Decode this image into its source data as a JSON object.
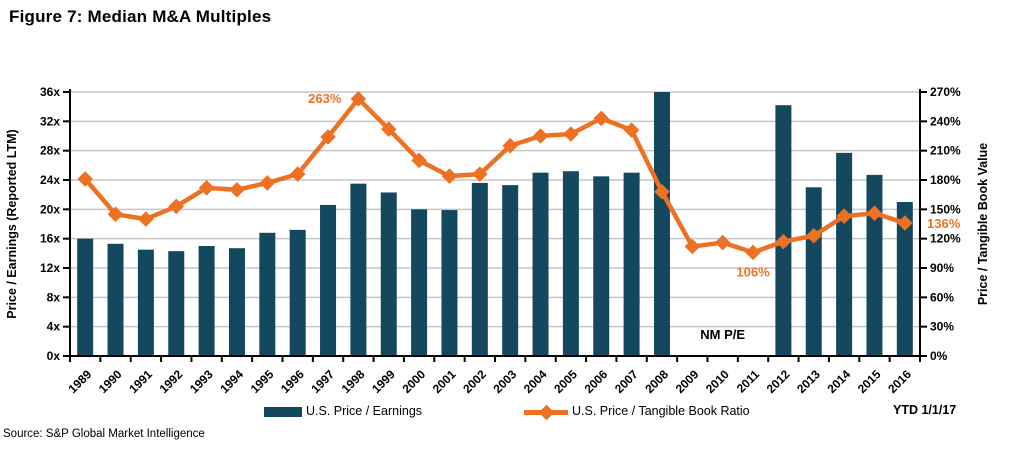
{
  "title": "Figure 7: Median M&A Multiples",
  "source": "Source: S&P Global Market Intelligence",
  "ytd_label": "YTD 1/1/17",
  "legend": {
    "bars": "U.S. Price / Earnings",
    "line": "U.S. Price / Tangible Book Ratio"
  },
  "colors": {
    "bar": "#14485F",
    "line": "#EE7023",
    "grid": "#C6C6C6",
    "axis": "#000000"
  },
  "chart_data": {
    "type": "bar",
    "subtype": "combo bar + line, dual axis",
    "grid": true,
    "legend_position": "bottom",
    "categories": [
      "1989",
      "1990",
      "1991",
      "1992",
      "1993",
      "1994",
      "1995",
      "1996",
      "1997",
      "1998",
      "1999",
      "2000",
      "2001",
      "2002",
      "2003",
      "2004",
      "2005",
      "2006",
      "2007",
      "2008",
      "2009",
      "2010",
      "2011",
      "2012",
      "2013",
      "2014",
      "2015",
      "2016"
    ],
    "series": [
      {
        "name": "U.S. Price / Earnings",
        "type": "bar",
        "axis": "left",
        "values": [
          16.0,
          15.3,
          14.5,
          14.3,
          15.0,
          14.7,
          16.8,
          17.2,
          20.6,
          23.5,
          22.3,
          20.0,
          19.9,
          23.6,
          23.3,
          25.0,
          25.2,
          24.5,
          25.0,
          36.0,
          null,
          null,
          null,
          34.2,
          23.0,
          27.7,
          24.7,
          21.0
        ]
      },
      {
        "name": "U.S. Price / Tangible Book Ratio",
        "type": "line",
        "axis": "right",
        "values": [
          181,
          145,
          140,
          153,
          172,
          170,
          177,
          186,
          224,
          263,
          232,
          200,
          184,
          186,
          215,
          225,
          227,
          243,
          231,
          168,
          112,
          116,
          106,
          117,
          123,
          143,
          146,
          136
        ]
      }
    ],
    "left_axis": {
      "label": "Price / Earnings (Reported LTM)",
      "min": 0,
      "max": 36,
      "step": 4,
      "suffix": "x"
    },
    "right_axis": {
      "label": "Price / Tangible Book Value",
      "min": 0,
      "max": 270,
      "step": 30,
      "suffix": "%"
    },
    "annotations": [
      {
        "text": "263%",
        "year": "1998",
        "series": "line",
        "pos": "left-of-peak"
      },
      {
        "text": "106%",
        "year": "2011",
        "series": "line",
        "pos": "below"
      },
      {
        "text": "136%",
        "year": "2016",
        "series": "line",
        "pos": "right"
      },
      {
        "text": "NM P/E",
        "year": "2010",
        "series": "bar",
        "pos": "inside-bottom"
      }
    ]
  }
}
